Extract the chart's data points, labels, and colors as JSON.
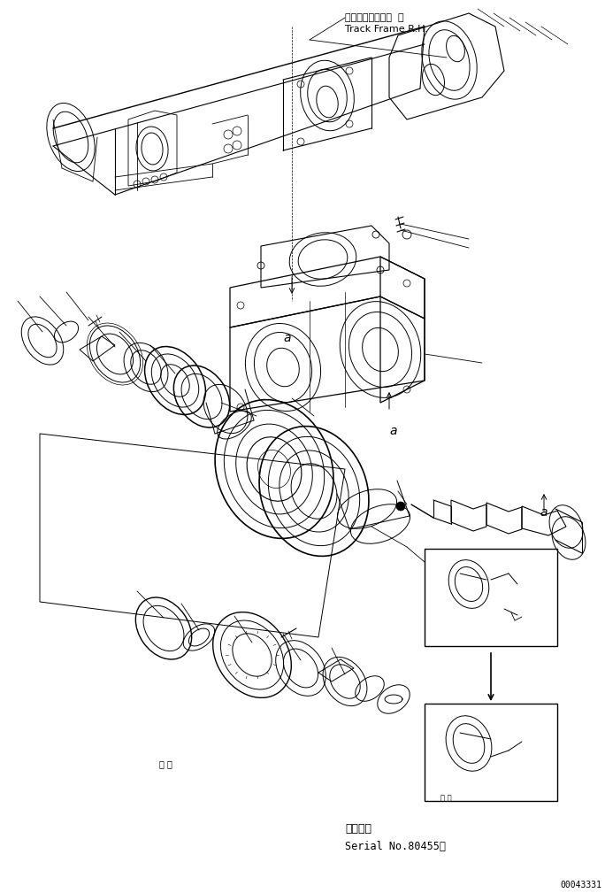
{
  "background_color": "#ffffff",
  "fig_width": 6.84,
  "fig_height": 10.09,
  "dpi": 100,
  "label_track_frame_jp": "トラックフレーム  右",
  "label_track_frame_en": "Track Frame R.H.",
  "label_serial_jp": "適用号機",
  "label_serial_en": "Serial No.80455～",
  "label_doc_number": "00043331",
  "label_a": "a",
  "label_dots": "・ ・",
  "line_color": "#000000",
  "text_color": "#000000",
  "lw": 0.7
}
